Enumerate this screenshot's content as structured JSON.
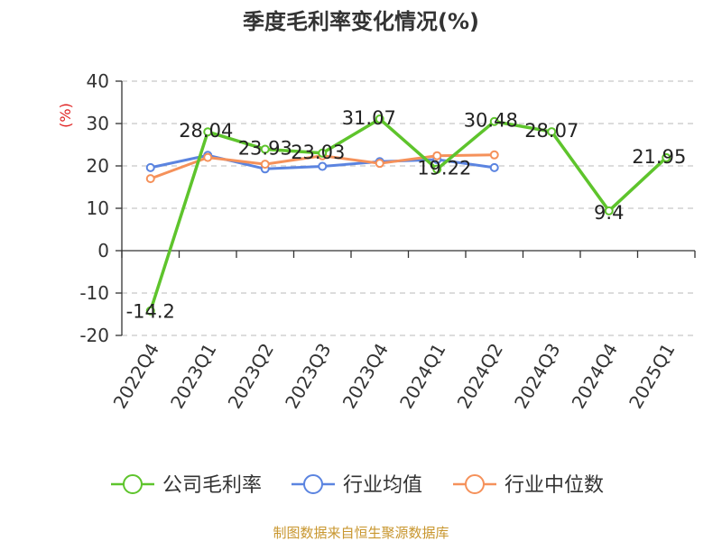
{
  "chart_data": {
    "type": "line",
    "title": "季度毛利率变化情况(%)",
    "ylabel": "(%)",
    "xlabel": "",
    "ylim": [
      -20,
      40
    ],
    "yticks": [
      -20,
      -10,
      0,
      10,
      20,
      30,
      40
    ],
    "grid": true,
    "legend_position": "bottom",
    "categories": [
      "2022Q4",
      "2023Q1",
      "2023Q2",
      "2023Q3",
      "2023Q4",
      "2024Q1",
      "2024Q2",
      "2024Q3",
      "2024Q4",
      "2025Q1"
    ],
    "series": [
      {
        "name": "公司毛利率",
        "color": "#5ec42c",
        "values": [
          -14.2,
          28.04,
          23.93,
          23.03,
          31.07,
          19.22,
          30.48,
          28.07,
          9.4,
          21.95
        ],
        "labels": [
          "-14.2",
          "28.04",
          "23.93",
          "23.03",
          "31.07",
          "19.22",
          "30.48",
          "28.07",
          "9.4",
          "21.95"
        ]
      },
      {
        "name": "行业均值",
        "color": "#5b84e0",
        "values": [
          19.6,
          22.5,
          19.3,
          19.9,
          21.0,
          21.5,
          19.6,
          null,
          null,
          null
        ]
      },
      {
        "name": "行业中位数",
        "color": "#f5915a",
        "values": [
          17.0,
          22.0,
          20.4,
          22.4,
          20.6,
          22.4,
          22.6,
          null,
          null,
          null
        ]
      }
    ]
  },
  "source": "制图数据来自恒生聚源数据库"
}
